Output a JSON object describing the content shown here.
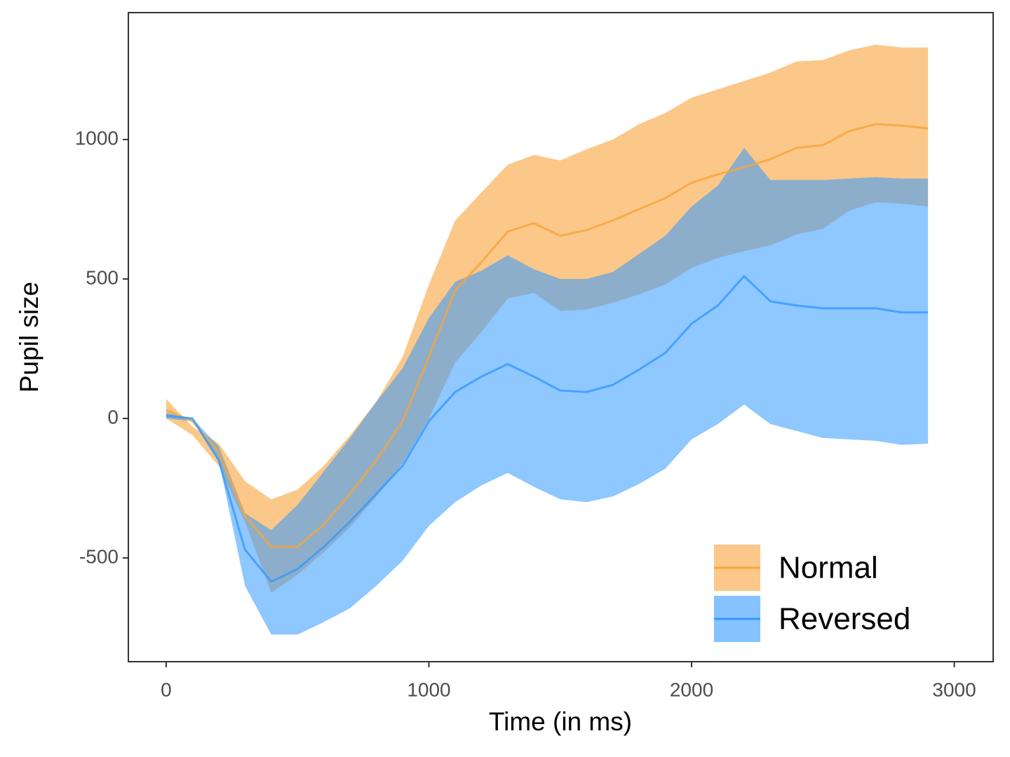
{
  "chart_data": {
    "type": "ribbon-line",
    "x_label": "Time (in ms)",
    "y_label": "Pupil size",
    "x": [
      0,
      100,
      200,
      300,
      400,
      500,
      600,
      700,
      800,
      900,
      1000,
      1100,
      1200,
      1300,
      1400,
      1500,
      1600,
      1700,
      1800,
      1900,
      2000,
      2100,
      2200,
      2300,
      2400,
      2500,
      2600,
      2700,
      2800,
      2900
    ],
    "series": [
      {
        "name": "Normal",
        "color": "#f8a43a",
        "values": [
          30,
          -10,
          -120,
          -350,
          -460,
          -460,
          -380,
          -270,
          -150,
          -10,
          220,
          460,
          560,
          670,
          700,
          655,
          675,
          710,
          750,
          790,
          845,
          875,
          900,
          930,
          970,
          980,
          1030,
          1055,
          1050,
          1040
        ],
        "upper": [
          70,
          -30,
          -90,
          -225,
          -290,
          -255,
          -170,
          -60,
          60,
          220,
          480,
          710,
          810,
          910,
          945,
          925,
          965,
          1000,
          1055,
          1095,
          1150,
          1180,
          1210,
          1240,
          1280,
          1285,
          1320,
          1340,
          1330,
          1330
        ],
        "lower": [
          0,
          -60,
          -170,
          -370,
          -625,
          -560,
          -480,
          -390,
          -280,
          -160,
          0,
          200,
          310,
          430,
          450,
          385,
          390,
          415,
          445,
          480,
          540,
          575,
          600,
          620,
          660,
          680,
          745,
          775,
          770,
          760
        ]
      },
      {
        "name": "Reversed",
        "color": "#3399ff",
        "values": [
          10,
          0,
          -150,
          -470,
          -585,
          -540,
          -460,
          -370,
          -270,
          -170,
          -10,
          95,
          150,
          195,
          150,
          100,
          95,
          120,
          175,
          235,
          340,
          405,
          510,
          420,
          405,
          395,
          395,
          395,
          380,
          380
        ],
        "upper": [
          20,
          0,
          -100,
          -340,
          -400,
          -310,
          -190,
          -70,
          60,
          180,
          360,
          490,
          530,
          585,
          535,
          500,
          500,
          525,
          590,
          655,
          760,
          835,
          970,
          855,
          855,
          855,
          860,
          865,
          860,
          860
        ],
        "lower": [
          0,
          -10,
          -150,
          -600,
          -775,
          -775,
          -730,
          -680,
          -600,
          -510,
          -385,
          -300,
          -240,
          -195,
          -245,
          -290,
          -300,
          -280,
          -235,
          -180,
          -75,
          -20,
          50,
          -20,
          -45,
          -70,
          -75,
          -80,
          -95,
          -90
        ]
      }
    ],
    "xlim": [
      -144,
      3148
    ],
    "ylim": [
      -872,
      1455
    ],
    "xticks": [
      0,
      1000,
      2000,
      3000
    ],
    "yticks": [
      -500,
      0,
      500,
      1000
    ],
    "grid": false,
    "legend": "bottom-right"
  }
}
